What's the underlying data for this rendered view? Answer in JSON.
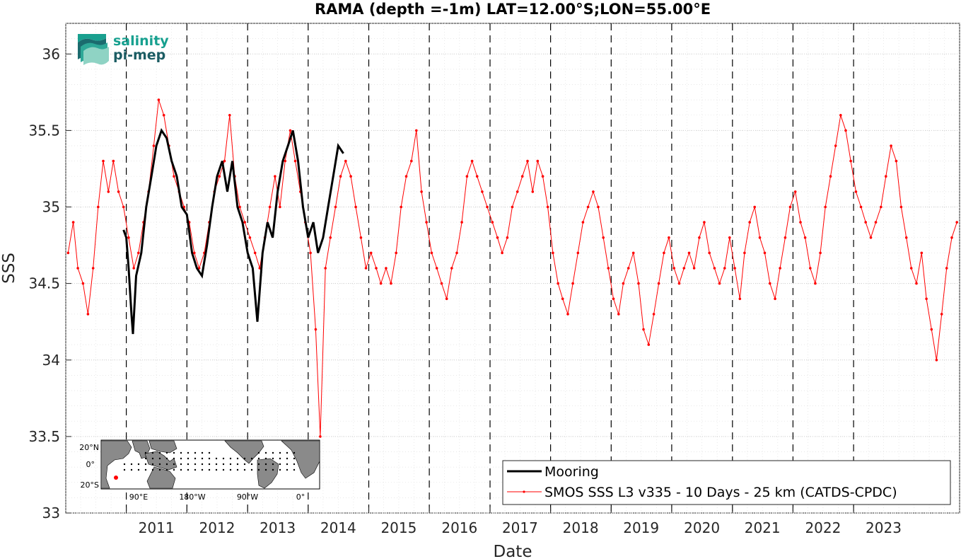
{
  "chart_data": {
    "type": "line",
    "title": "RAMA (depth =-1m) LAT=12.00°S;LON=55.00°E",
    "xlabel": "Date",
    "ylabel": "SSS",
    "xlim": [
      "2010-01-01",
      "2024-10-01"
    ],
    "ylim": [
      33,
      36.2
    ],
    "xticks": [
      "2011",
      "2012",
      "2013",
      "2014",
      "2015",
      "2016",
      "2017",
      "2018",
      "2019",
      "2020",
      "2021",
      "2022",
      "2023"
    ],
    "yticks": [
      "33",
      "33.5",
      "34",
      "34.5",
      "35",
      "35.5",
      "36"
    ],
    "grid": true,
    "minor_grid": true,
    "legend_position": "bottom-right",
    "vertical_dashed_lines_at_year_starts": true,
    "series": [
      {
        "name": "Mooring",
        "color": "#000000",
        "style": "solid-thick",
        "points": [
          [
            "2010-12-15",
            34.85
          ],
          [
            "2011-01-01",
            34.8
          ],
          [
            "2011-01-15",
            34.6
          ],
          [
            "2011-02-01",
            34.3
          ],
          [
            "2011-02-10",
            34.17
          ],
          [
            "2011-03-01",
            34.55
          ],
          [
            "2011-04-01",
            34.7
          ],
          [
            "2011-05-01",
            35.0
          ],
          [
            "2011-06-01",
            35.2
          ],
          [
            "2011-07-01",
            35.4
          ],
          [
            "2011-08-01",
            35.5
          ],
          [
            "2011-09-01",
            35.45
          ],
          [
            "2011-10-01",
            35.3
          ],
          [
            "2011-11-01",
            35.2
          ],
          [
            "2011-12-01",
            35.0
          ],
          [
            "2012-01-01",
            34.95
          ],
          [
            "2012-02-01",
            34.7
          ],
          [
            "2012-03-01",
            34.6
          ],
          [
            "2012-04-01",
            34.55
          ],
          [
            "2012-05-01",
            34.75
          ],
          [
            "2012-06-01",
            35.0
          ],
          [
            "2012-07-01",
            35.2
          ],
          [
            "2012-08-01",
            35.3
          ],
          [
            "2012-09-01",
            35.1
          ],
          [
            "2012-10-01",
            35.3
          ],
          [
            "2012-11-01",
            35.0
          ],
          [
            "2012-12-01",
            34.9
          ],
          [
            "2013-01-01",
            34.7
          ],
          [
            "2013-02-01",
            34.6
          ],
          [
            "2013-03-01",
            34.25
          ],
          [
            "2013-04-01",
            34.7
          ],
          [
            "2013-05-01",
            34.9
          ],
          [
            "2013-06-01",
            34.8
          ],
          [
            "2013-07-01",
            35.1
          ],
          [
            "2013-08-01",
            35.3
          ],
          [
            "2013-09-01",
            35.4
          ],
          [
            "2013-10-01",
            35.5
          ],
          [
            "2013-11-01",
            35.3
          ],
          [
            "2013-12-01",
            35.0
          ],
          [
            "2014-01-01",
            34.8
          ],
          [
            "2014-02-01",
            34.9
          ],
          [
            "2014-03-01",
            34.7
          ],
          [
            "2014-04-01",
            34.8
          ],
          [
            "2014-05-01",
            35.0
          ],
          [
            "2014-06-01",
            35.2
          ],
          [
            "2014-07-01",
            35.4
          ],
          [
            "2014-08-01",
            35.35
          ]
        ]
      },
      {
        "name": "SMOS SSS L3 v335 - 10 Days - 25 km (CATDS-CPDC)",
        "color": "#ff0000",
        "style": "line-with-dots",
        "points": [
          [
            "2010-01-15",
            34.7
          ],
          [
            "2010-02-15",
            34.9
          ],
          [
            "2010-03-15",
            34.6
          ],
          [
            "2010-04-15",
            34.5
          ],
          [
            "2010-05-15",
            34.3
          ],
          [
            "2010-06-15",
            34.6
          ],
          [
            "2010-07-15",
            35.0
          ],
          [
            "2010-08-15",
            35.3
          ],
          [
            "2010-09-15",
            35.1
          ],
          [
            "2010-10-15",
            35.3
          ],
          [
            "2010-11-15",
            35.1
          ],
          [
            "2010-12-15",
            35.0
          ],
          [
            "2011-01-15",
            34.8
          ],
          [
            "2011-02-15",
            34.6
          ],
          [
            "2011-03-15",
            34.7
          ],
          [
            "2011-04-15",
            34.9
          ],
          [
            "2011-05-15",
            35.1
          ],
          [
            "2011-06-15",
            35.4
          ],
          [
            "2011-07-15",
            35.7
          ],
          [
            "2011-08-15",
            35.6
          ],
          [
            "2011-09-15",
            35.4
          ],
          [
            "2011-10-15",
            35.2
          ],
          [
            "2011-11-15",
            35.1
          ],
          [
            "2011-12-15",
            35.0
          ],
          [
            "2012-01-15",
            34.9
          ],
          [
            "2012-02-15",
            34.7
          ],
          [
            "2012-03-15",
            34.6
          ],
          [
            "2012-04-15",
            34.7
          ],
          [
            "2012-05-15",
            34.9
          ],
          [
            "2012-06-15",
            35.1
          ],
          [
            "2012-07-15",
            35.2
          ],
          [
            "2012-08-15",
            35.3
          ],
          [
            "2012-09-15",
            35.6
          ],
          [
            "2012-10-15",
            35.2
          ],
          [
            "2012-11-15",
            35.0
          ],
          [
            "2012-12-15",
            34.9
          ],
          [
            "2013-01-15",
            34.8
          ],
          [
            "2013-02-15",
            34.7
          ],
          [
            "2013-03-15",
            34.6
          ],
          [
            "2013-04-15",
            34.8
          ],
          [
            "2013-05-15",
            35.0
          ],
          [
            "2013-06-15",
            35.2
          ],
          [
            "2013-07-15",
            35.0
          ],
          [
            "2013-08-15",
            35.3
          ],
          [
            "2013-09-15",
            35.5
          ],
          [
            "2013-10-15",
            35.3
          ],
          [
            "2013-11-15",
            35.1
          ],
          [
            "2013-12-15",
            34.9
          ],
          [
            "2014-01-15",
            34.7
          ],
          [
            "2014-02-15",
            34.2
          ],
          [
            "2014-03-15",
            33.5
          ],
          [
            "2014-04-15",
            34.6
          ],
          [
            "2014-05-15",
            34.8
          ],
          [
            "2014-06-15",
            35.0
          ],
          [
            "2014-07-15",
            35.2
          ],
          [
            "2014-08-15",
            35.3
          ],
          [
            "2014-09-15",
            35.2
          ],
          [
            "2014-10-15",
            35.0
          ],
          [
            "2014-11-15",
            34.8
          ],
          [
            "2014-12-15",
            34.6
          ],
          [
            "2015-01-15",
            34.7
          ],
          [
            "2015-02-15",
            34.6
          ],
          [
            "2015-03-15",
            34.5
          ],
          [
            "2015-04-15",
            34.6
          ],
          [
            "2015-05-15",
            34.5
          ],
          [
            "2015-06-15",
            34.7
          ],
          [
            "2015-07-15",
            35.0
          ],
          [
            "2015-08-15",
            35.2
          ],
          [
            "2015-09-15",
            35.3
          ],
          [
            "2015-10-15",
            35.5
          ],
          [
            "2015-11-15",
            35.1
          ],
          [
            "2015-12-15",
            34.9
          ],
          [
            "2016-01-15",
            34.7
          ],
          [
            "2016-02-15",
            34.6
          ],
          [
            "2016-03-15",
            34.5
          ],
          [
            "2016-04-15",
            34.4
          ],
          [
            "2016-05-15",
            34.6
          ],
          [
            "2016-06-15",
            34.7
          ],
          [
            "2016-07-15",
            34.9
          ],
          [
            "2016-08-15",
            35.2
          ],
          [
            "2016-09-15",
            35.3
          ],
          [
            "2016-10-15",
            35.2
          ],
          [
            "2016-11-15",
            35.1
          ],
          [
            "2016-12-15",
            35.0
          ],
          [
            "2017-01-15",
            34.9
          ],
          [
            "2017-02-15",
            34.8
          ],
          [
            "2017-03-15",
            34.7
          ],
          [
            "2017-04-15",
            34.8
          ],
          [
            "2017-05-15",
            35.0
          ],
          [
            "2017-06-15",
            35.1
          ],
          [
            "2017-07-15",
            35.2
          ],
          [
            "2017-08-15",
            35.3
          ],
          [
            "2017-09-15",
            35.1
          ],
          [
            "2017-10-15",
            35.3
          ],
          [
            "2017-11-15",
            35.2
          ],
          [
            "2017-12-15",
            35.0
          ],
          [
            "2018-01-15",
            34.7
          ],
          [
            "2018-02-15",
            34.5
          ],
          [
            "2018-03-15",
            34.4
          ],
          [
            "2018-04-15",
            34.3
          ],
          [
            "2018-05-15",
            34.5
          ],
          [
            "2018-06-15",
            34.7
          ],
          [
            "2018-07-15",
            34.9
          ],
          [
            "2018-08-15",
            35.0
          ],
          [
            "2018-09-15",
            35.1
          ],
          [
            "2018-10-15",
            35.0
          ],
          [
            "2018-11-15",
            34.8
          ],
          [
            "2018-12-15",
            34.6
          ],
          [
            "2019-01-15",
            34.4
          ],
          [
            "2019-02-15",
            34.3
          ],
          [
            "2019-03-15",
            34.5
          ],
          [
            "2019-04-15",
            34.6
          ],
          [
            "2019-05-15",
            34.7
          ],
          [
            "2019-06-15",
            34.5
          ],
          [
            "2019-07-15",
            34.2
          ],
          [
            "2019-08-15",
            34.1
          ],
          [
            "2019-09-15",
            34.3
          ],
          [
            "2019-10-15",
            34.5
          ],
          [
            "2019-11-15",
            34.7
          ],
          [
            "2019-12-15",
            34.8
          ],
          [
            "2020-01-15",
            34.6
          ],
          [
            "2020-02-15",
            34.5
          ],
          [
            "2020-03-15",
            34.6
          ],
          [
            "2020-04-15",
            34.7
          ],
          [
            "2020-05-15",
            34.6
          ],
          [
            "2020-06-15",
            34.8
          ],
          [
            "2020-07-15",
            34.9
          ],
          [
            "2020-08-15",
            34.7
          ],
          [
            "2020-09-15",
            34.6
          ],
          [
            "2020-10-15",
            34.5
          ],
          [
            "2020-11-15",
            34.6
          ],
          [
            "2020-12-15",
            34.8
          ],
          [
            "2021-01-15",
            34.6
          ],
          [
            "2021-02-15",
            34.4
          ],
          [
            "2021-03-15",
            34.7
          ],
          [
            "2021-04-15",
            34.9
          ],
          [
            "2021-05-15",
            35.0
          ],
          [
            "2021-06-15",
            34.8
          ],
          [
            "2021-07-15",
            34.7
          ],
          [
            "2021-08-15",
            34.5
          ],
          [
            "2021-09-15",
            34.4
          ],
          [
            "2021-10-15",
            34.6
          ],
          [
            "2021-11-15",
            34.8
          ],
          [
            "2021-12-15",
            35.0
          ],
          [
            "2022-01-15",
            35.1
          ],
          [
            "2022-02-15",
            34.9
          ],
          [
            "2022-03-15",
            34.8
          ],
          [
            "2022-04-15",
            34.6
          ],
          [
            "2022-05-15",
            34.5
          ],
          [
            "2022-06-15",
            34.7
          ],
          [
            "2022-07-15",
            35.0
          ],
          [
            "2022-08-15",
            35.2
          ],
          [
            "2022-09-15",
            35.4
          ],
          [
            "2022-10-15",
            35.6
          ],
          [
            "2022-11-15",
            35.5
          ],
          [
            "2022-12-15",
            35.3
          ],
          [
            "2023-01-15",
            35.1
          ],
          [
            "2023-02-15",
            35.0
          ],
          [
            "2023-03-15",
            34.9
          ],
          [
            "2023-04-15",
            34.8
          ],
          [
            "2023-05-15",
            34.9
          ],
          [
            "2023-06-15",
            35.0
          ],
          [
            "2023-07-15",
            35.2
          ],
          [
            "2023-08-15",
            35.4
          ],
          [
            "2023-09-15",
            35.3
          ],
          [
            "2023-10-15",
            35.0
          ],
          [
            "2023-11-15",
            34.8
          ],
          [
            "2023-12-15",
            34.6
          ],
          [
            "2024-01-15",
            34.5
          ],
          [
            "2024-02-15",
            34.7
          ],
          [
            "2024-03-15",
            34.4
          ],
          [
            "2024-04-15",
            34.2
          ],
          [
            "2024-05-15",
            34.0
          ],
          [
            "2024-06-15",
            34.3
          ],
          [
            "2024-07-15",
            34.6
          ],
          [
            "2024-08-15",
            34.8
          ],
          [
            "2024-09-15",
            34.9
          ]
        ]
      }
    ]
  },
  "logo": {
    "line1": "salinity",
    "line2": "pi-mep",
    "color_primary": "#17a08f",
    "color_secondary": "#1b5c63"
  },
  "inset_map": {
    "lat_labels": [
      "20°N",
      "0°",
      "20°S"
    ],
    "lon_labels": [
      "90°E",
      "180°W",
      "90°W",
      "0°"
    ],
    "land_color": "#8a8a8a",
    "ocean_color": "#ffffff",
    "mooring_marker_color": "#ff0000"
  }
}
